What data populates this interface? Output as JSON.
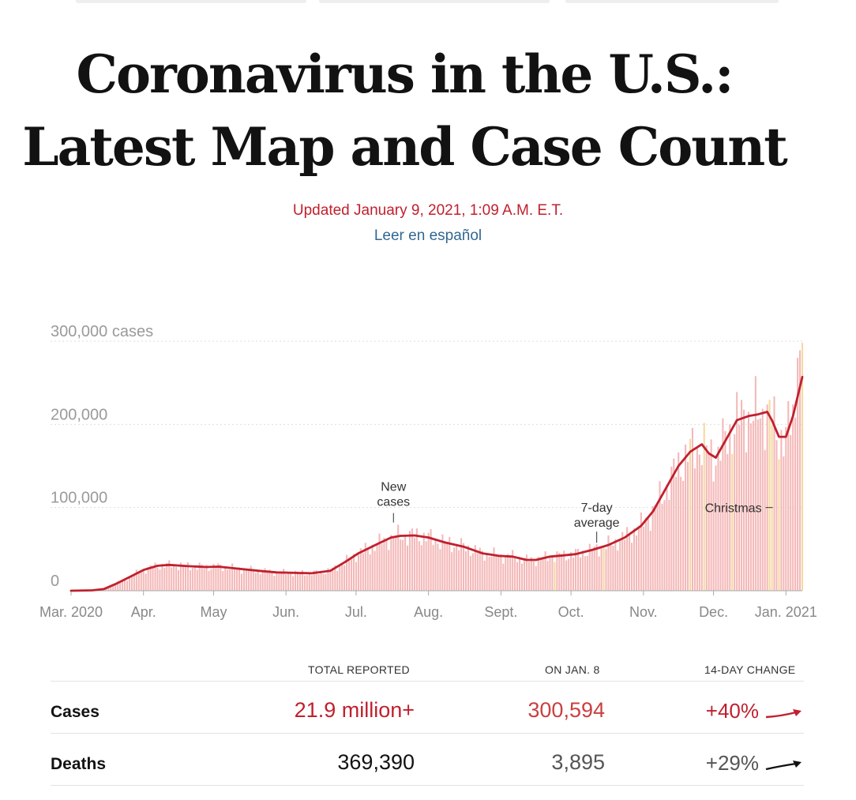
{
  "page": {
    "headline_line1": "Coronavirus in the U.S.:",
    "headline_line2": "Latest Map and Case Count",
    "updated": "Updated January 9, 2021, 1:09 A.M. E.T.",
    "spanish_link": "Leer en español"
  },
  "chart_data": {
    "type": "bar",
    "title": "",
    "xlabel": "",
    "ylabel": "",
    "ylim": [
      0,
      300000
    ],
    "x_range": [
      "2020-03-01",
      "2021-01-08"
    ],
    "y_ticks": [
      {
        "value": 300000,
        "label": "300,000 cases"
      },
      {
        "value": 200000,
        "label": "200,000"
      },
      {
        "value": 100000,
        "label": "100,000"
      },
      {
        "value": 0,
        "label": "0"
      }
    ],
    "x_ticks": [
      {
        "date": "2020-03-01",
        "label": "Mar. 2020"
      },
      {
        "date": "2020-04-01",
        "label": "Apr."
      },
      {
        "date": "2020-05-01",
        "label": "May"
      },
      {
        "date": "2020-06-01",
        "label": "Jun."
      },
      {
        "date": "2020-07-01",
        "label": "Jul."
      },
      {
        "date": "2020-08-01",
        "label": "Aug."
      },
      {
        "date": "2020-09-01",
        "label": "Sept."
      },
      {
        "date": "2020-10-01",
        "label": "Oct."
      },
      {
        "date": "2020-11-01",
        "label": "Nov."
      },
      {
        "date": "2020-12-01",
        "label": "Dec."
      },
      {
        "date": "2021-01-01",
        "label": "Jan. 2021"
      }
    ],
    "series": [
      {
        "name": "New cases",
        "kind": "daily-bars",
        "color": "#f4b8b8",
        "values": []
      },
      {
        "name": "7-day average",
        "kind": "line",
        "color": "#c0202e",
        "points": [
          [
            "2020-03-01",
            0
          ],
          [
            "2020-03-10",
            500
          ],
          [
            "2020-03-15",
            2000
          ],
          [
            "2020-03-20",
            8000
          ],
          [
            "2020-03-25",
            15000
          ],
          [
            "2020-04-01",
            25000
          ],
          [
            "2020-04-07",
            30000
          ],
          [
            "2020-04-12",
            31000
          ],
          [
            "2020-04-20",
            29500
          ],
          [
            "2020-04-28",
            28500
          ],
          [
            "2020-05-03",
            29000
          ],
          [
            "2020-05-10",
            27000
          ],
          [
            "2020-05-20",
            24000
          ],
          [
            "2020-05-28",
            22000
          ],
          [
            "2020-06-05",
            21500
          ],
          [
            "2020-06-12",
            21000
          ],
          [
            "2020-06-20",
            24000
          ],
          [
            "2020-06-26",
            34000
          ],
          [
            "2020-07-02",
            45000
          ],
          [
            "2020-07-10",
            56000
          ],
          [
            "2020-07-16",
            64000
          ],
          [
            "2020-07-20",
            66000
          ],
          [
            "2020-07-26",
            66500
          ],
          [
            "2020-08-01",
            64000
          ],
          [
            "2020-08-08",
            58000
          ],
          [
            "2020-08-16",
            53000
          ],
          [
            "2020-08-24",
            45000
          ],
          [
            "2020-08-31",
            42000
          ],
          [
            "2020-09-06",
            41000
          ],
          [
            "2020-09-12",
            37000
          ],
          [
            "2020-09-16",
            37000
          ],
          [
            "2020-09-22",
            41000
          ],
          [
            "2020-09-28",
            42500
          ],
          [
            "2020-10-03",
            44000
          ],
          [
            "2020-10-10",
            49000
          ],
          [
            "2020-10-17",
            55000
          ],
          [
            "2020-10-24",
            64000
          ],
          [
            "2020-10-31",
            78000
          ],
          [
            "2020-11-05",
            95000
          ],
          [
            "2020-11-10",
            120000
          ],
          [
            "2020-11-16",
            150000
          ],
          [
            "2020-11-21",
            167000
          ],
          [
            "2020-11-26",
            176000
          ],
          [
            "2020-11-29",
            165000
          ],
          [
            "2020-12-02",
            160000
          ],
          [
            "2020-12-06",
            180000
          ],
          [
            "2020-12-11",
            205000
          ],
          [
            "2020-12-16",
            210000
          ],
          [
            "2020-12-20",
            212000
          ],
          [
            "2020-12-24",
            215000
          ],
          [
            "2020-12-26",
            205000
          ],
          [
            "2020-12-29",
            185000
          ],
          [
            "2021-01-01",
            185000
          ],
          [
            "2021-01-04",
            210000
          ],
          [
            "2021-01-08",
            257000
          ]
        ]
      }
    ],
    "annotations": [
      {
        "label": "New cases",
        "lines": [
          "New",
          "cases"
        ],
        "date": "2020-07-17",
        "value": 82000
      },
      {
        "label": "7-day average",
        "lines": [
          "7-day",
          "average"
        ],
        "date": "2020-10-12",
        "value": 52000
      },
      {
        "label": "Christmas",
        "date": "2020-12-25",
        "value": 100000
      }
    ],
    "grid": true,
    "legend": "none"
  },
  "table": {
    "headers": {
      "total": "TOTAL REPORTED",
      "on_date": "ON JAN. 8",
      "change": "14-DAY CHANGE"
    },
    "rows": [
      {
        "label": "Cases",
        "total": "21.9 million+",
        "on_date": "300,594",
        "change": "+40%",
        "color": "#c0202e"
      },
      {
        "label": "Deaths",
        "total": "369,390",
        "on_date": "3,895",
        "change": "+29%",
        "color": "#121212"
      }
    ]
  }
}
